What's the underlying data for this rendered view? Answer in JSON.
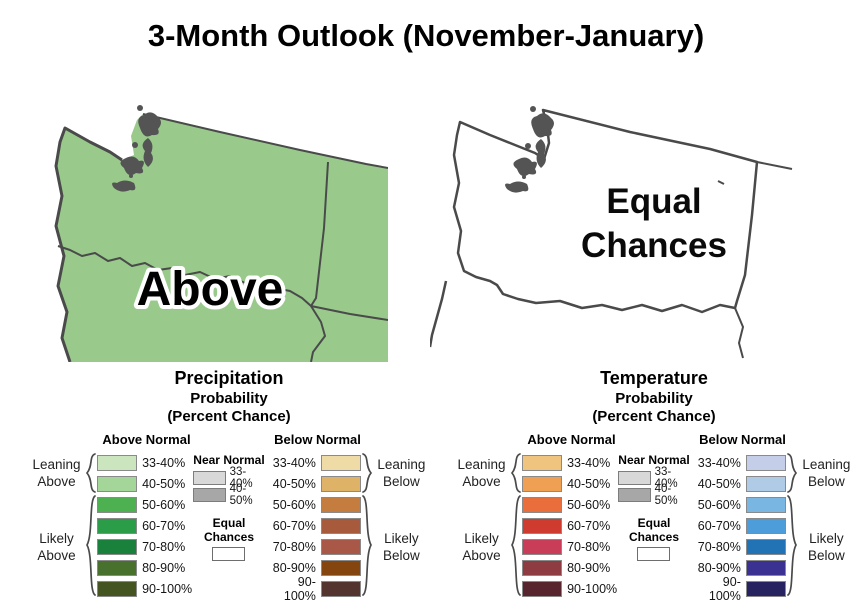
{
  "title": "3-Month Outlook (November-January)",
  "panels": {
    "precipitation": {
      "name": "Precipitation",
      "map_label": "Above",
      "map_fill": "#99CA8C",
      "legend": {
        "subtitle_line1": "Probability",
        "subtitle_line2": "(Percent Chance)",
        "above_header": "Above Normal",
        "below_header": "Below Normal",
        "leaning_above": "Leaning Above",
        "likely_above": "Likely Above",
        "leaning_below": "Leaning Below",
        "likely_below": "Likely Below",
        "near_normal": {
          "label": "Near Normal",
          "scale": [
            {
              "range": "33-40%",
              "color": "#D8D8D8"
            },
            {
              "range": "40-50%",
              "color": "#A7A7A7"
            }
          ]
        },
        "equal_chances": {
          "label": "Equal Chances",
          "color": "#FFFFFF"
        },
        "above_scale": [
          {
            "range": "33-40%",
            "color": "#CBE5BF"
          },
          {
            "range": "40-50%",
            "color": "#A4D69A"
          },
          {
            "range": "50-60%",
            "color": "#4EB151"
          },
          {
            "range": "60-70%",
            "color": "#2B9D48"
          },
          {
            "range": "70-80%",
            "color": "#1A813C"
          },
          {
            "range": "80-90%",
            "color": "#47712C"
          },
          {
            "range": "90-100%",
            "color": "#445521"
          }
        ],
        "below_scale": [
          {
            "range": "33-40%",
            "color": "#EEDBA5"
          },
          {
            "range": "40-50%",
            "color": "#DFB367"
          },
          {
            "range": "50-60%",
            "color": "#C47D3E"
          },
          {
            "range": "60-70%",
            "color": "#A85A3C"
          },
          {
            "range": "70-80%",
            "color": "#A95746"
          },
          {
            "range": "80-90%",
            "color": "#84450F"
          },
          {
            "range": "90-100%",
            "color": "#53342F"
          }
        ]
      }
    },
    "temperature": {
      "name": "Temperature",
      "map_label": "Equal Chances",
      "map_fill": "#FFFFFF",
      "legend": {
        "subtitle_line1": "Probability",
        "subtitle_line2": "(Percent Chance)",
        "above_header": "Above Normal",
        "below_header": "Below Normal",
        "leaning_above": "Leaning Above",
        "likely_above": "Likely Above",
        "leaning_below": "Leaning Below",
        "likely_below": "Likely Below",
        "near_normal": {
          "label": "Near Normal",
          "scale": [
            {
              "range": "33-40%",
              "color": "#D8D8D8"
            },
            {
              "range": "40-50%",
              "color": "#A7A7A7"
            }
          ]
        },
        "equal_chances": {
          "label": "Equal Chances",
          "color": "#FFFFFF"
        },
        "above_scale": [
          {
            "range": "33-40%",
            "color": "#EFC47E"
          },
          {
            "range": "40-50%",
            "color": "#F0A052"
          },
          {
            "range": "50-60%",
            "color": "#E96E3C"
          },
          {
            "range": "60-70%",
            "color": "#D03B30"
          },
          {
            "range": "70-80%",
            "color": "#C93D58"
          },
          {
            "range": "80-90%",
            "color": "#8E3B42"
          },
          {
            "range": "90-100%",
            "color": "#58252F"
          }
        ],
        "below_scale": [
          {
            "range": "33-40%",
            "color": "#C5CEE8"
          },
          {
            "range": "40-50%",
            "color": "#AFCBE6"
          },
          {
            "range": "50-60%",
            "color": "#79B7E2"
          },
          {
            "range": "60-70%",
            "color": "#4D9DDB"
          },
          {
            "range": "70-80%",
            "color": "#2272B6"
          },
          {
            "range": "80-90%",
            "color": "#3B3192"
          },
          {
            "range": "90-100%",
            "color": "#272260"
          }
        ]
      }
    }
  }
}
